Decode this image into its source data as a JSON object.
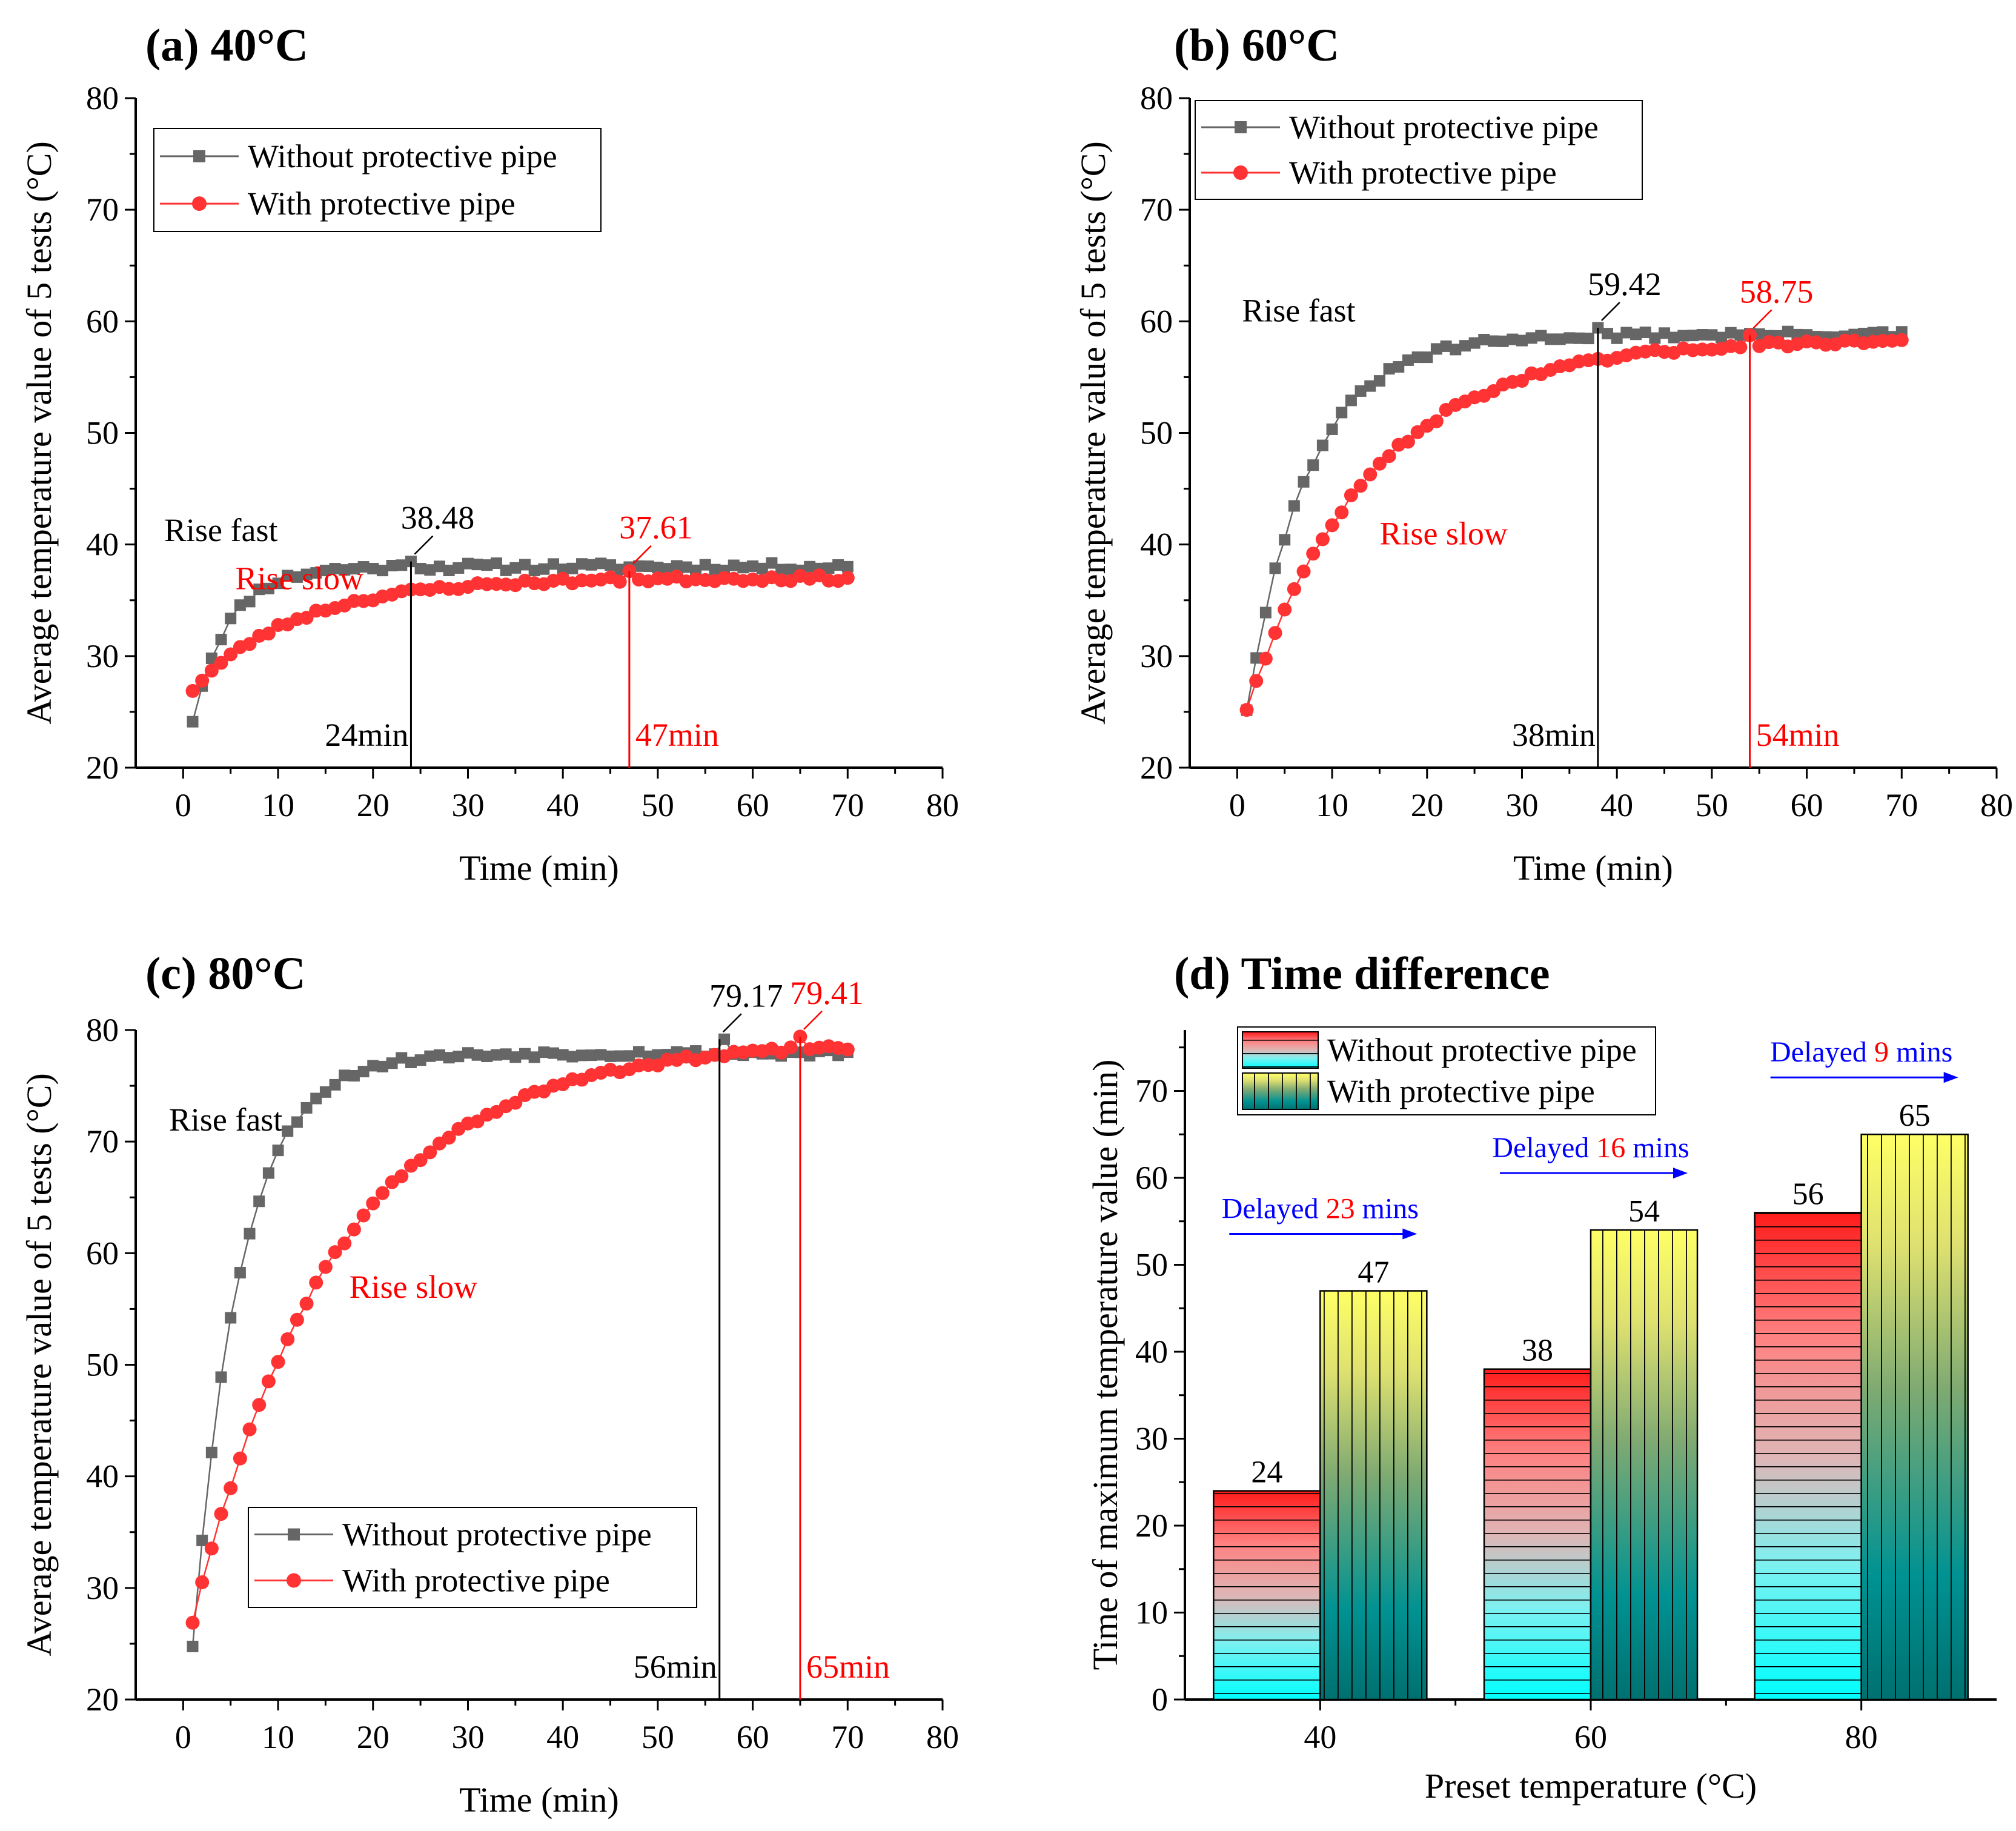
{
  "colors": {
    "without": "#666666",
    "with": "#ff3333",
    "red_text": "#ff0000",
    "blue_text": "#0000ff",
    "annotation_black": "#000000"
  },
  "chart_data": [
    {
      "id": "a",
      "type": "scatter",
      "title": "(a) 40°C",
      "xlabel": "Time (min)",
      "ylabel": "Average temperature value of 5 tests (°C)",
      "xlim": [
        -5,
        80
      ],
      "ylim": [
        20,
        80
      ],
      "xticks": [
        0,
        10,
        20,
        30,
        40,
        50,
        60,
        70,
        80
      ],
      "yticks": [
        20,
        30,
        40,
        50,
        60,
        70,
        80
      ],
      "legend": {
        "placement": "top-left",
        "entries": [
          "Without protective pipe",
          "With protective pipe"
        ]
      },
      "model": {
        "without": {
          "start": 24.3,
          "end": 38.0,
          "tau": 3.8,
          "noise": 0.35,
          "seed": 11
        },
        "with": {
          "start": 27.0,
          "end": 37.0,
          "tau": 11.0,
          "noise": 0.25,
          "seed": 23
        }
      },
      "peaks": [
        {
          "series": "without",
          "time": 24,
          "value": 38.48,
          "label": "38.48",
          "time_label": "24min"
        },
        {
          "series": "with",
          "time": 47,
          "value": 37.61,
          "label": "37.61",
          "time_label": "47min"
        }
      ],
      "annotations": [
        {
          "text": "Rise fast",
          "series": "without",
          "x": -2,
          "y": 40.3
        },
        {
          "text": "Rise slow",
          "series": "with",
          "x": 5.5,
          "y": 36.0
        }
      ]
    },
    {
      "id": "b",
      "type": "scatter",
      "title": "(b) 60°C",
      "xlabel": "Time (min)",
      "ylabel": "Average temperature value of 5 tests (°C)",
      "xlim": [
        -5,
        80
      ],
      "ylim": [
        20,
        80
      ],
      "xticks": [
        0,
        10,
        20,
        30,
        40,
        50,
        60,
        70,
        80
      ],
      "yticks": [
        20,
        30,
        40,
        50,
        60,
        70,
        80
      ],
      "legend": {
        "placement": "top-left",
        "entries": [
          "Without protective pipe",
          "With protective pipe"
        ]
      },
      "model": {
        "without": {
          "start": 25.3,
          "end": 58.8,
          "tau": 6.5,
          "noise": 0.3,
          "seed": 31
        },
        "with": {
          "start": 25.3,
          "end": 58.4,
          "tau": 13.0,
          "noise": 0.25,
          "seed": 47
        }
      },
      "peaks": [
        {
          "series": "without",
          "time": 38,
          "value": 59.42,
          "label": "59.42",
          "time_label": "38min"
        },
        {
          "series": "with",
          "time": 54,
          "value": 58.75,
          "label": "58.75",
          "time_label": "54min"
        }
      ],
      "annotations": [
        {
          "text": "Rise fast",
          "series": "without",
          "x": 0.5,
          "y": 60.0
        },
        {
          "text": "Rise slow",
          "series": "with",
          "x": 15,
          "y": 40.0
        }
      ]
    },
    {
      "id": "c",
      "type": "scatter",
      "title": "(c) 80°C",
      "xlabel": "Time (min)",
      "ylabel": "Average temperature value of 5 tests (°C)",
      "xlim": [
        -5,
        80
      ],
      "ylim": [
        20,
        80
      ],
      "xticks": [
        0,
        10,
        20,
        30,
        40,
        50,
        60,
        70,
        80
      ],
      "yticks": [
        20,
        30,
        40,
        50,
        60,
        70,
        80
      ],
      "legend": {
        "placement": "bottom-center",
        "entries": [
          "Without protective pipe",
          "With protective pipe"
        ]
      },
      "model": {
        "without": {
          "start": 24.9,
          "end": 77.9,
          "tau": 5.0,
          "noise": 0.3,
          "seed": 53
        },
        "with": {
          "start": 27.0,
          "end": 79.0,
          "tau": 15.0,
          "noise": 0.25,
          "seed": 61
        }
      },
      "peaks": [
        {
          "series": "without",
          "time": 56.5,
          "value": 79.17,
          "label": "79.17",
          "time_label": "56min"
        },
        {
          "series": "with",
          "time": 65,
          "value": 79.41,
          "label": "79.41",
          "time_label": "65min"
        }
      ],
      "annotations": [
        {
          "text": "Rise fast",
          "series": "without",
          "x": -1.5,
          "y": 71.0
        },
        {
          "text": "Rise slow",
          "series": "with",
          "x": 17.5,
          "y": 56.0
        }
      ]
    },
    {
      "id": "d",
      "type": "bar",
      "title": "(d) Time difference",
      "xlabel": "Preset temperature (°C)",
      "ylabel": "Time of maximum temperature value (min)",
      "ylim": [
        0,
        77
      ],
      "yticks": [
        0,
        10,
        20,
        30,
        40,
        50,
        60,
        70
      ],
      "categories": [
        "40",
        "60",
        "80"
      ],
      "series": [
        {
          "name": "Without protective pipe",
          "values": [
            24,
            38,
            56
          ]
        },
        {
          "name": "With protective pipe",
          "values": [
            47,
            54,
            65
          ]
        }
      ],
      "legend": {
        "placement": "top-left",
        "entries": [
          "Without protective pipe",
          "With protective pipe"
        ]
      },
      "delays": [
        {
          "prefix": "Delayed ",
          "value": "23",
          "suffix": " mins"
        },
        {
          "prefix": "Delayed ",
          "value": "16",
          "suffix": " mins"
        },
        {
          "prefix": "Delayed ",
          "value": "9",
          "suffix": " mins"
        }
      ]
    }
  ]
}
